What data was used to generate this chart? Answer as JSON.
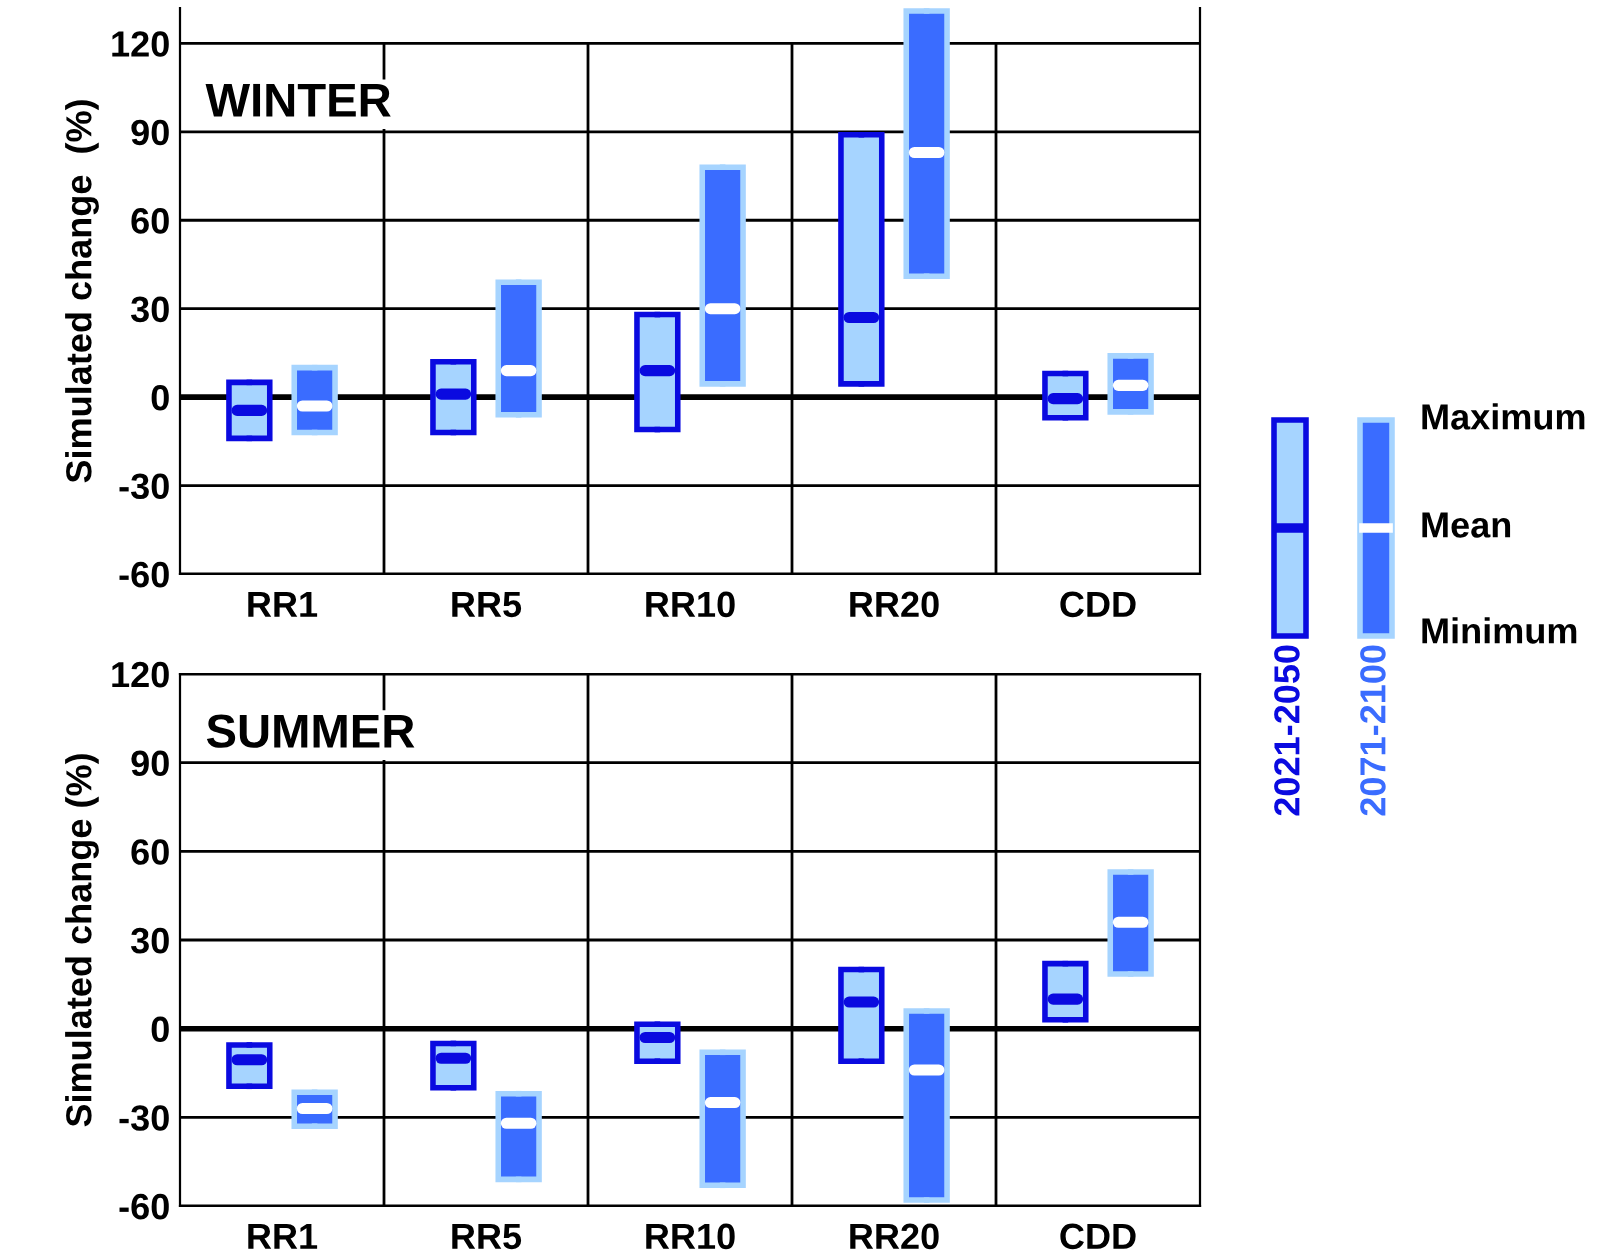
{
  "chart_data": [
    {
      "type": "box",
      "title": "WINTER",
      "ylabel": "Simulated change  (%)",
      "categories": [
        "RR1",
        "RR5",
        "RR10",
        "RR20",
        "CDD"
      ],
      "series": [
        {
          "name": "2021-2050",
          "color": "#a6d4ff",
          "boxes": [
            {
              "low": -14,
              "q1": -14,
              "median": -4.5,
              "q3": 5,
              "high": 5
            },
            {
              "low": -12,
              "q1": -12,
              "median": 1,
              "q3": 12,
              "high": 12
            },
            {
              "low": -11,
              "q1": -11,
              "median": 9,
              "q3": 28,
              "high": 28
            },
            {
              "low": 4.5,
              "q1": 4.5,
              "median": 27,
              "q3": 89,
              "high": 89
            },
            {
              "low": -7,
              "q1": -7,
              "median": -0.5,
              "q3": 8,
              "high": 8
            }
          ]
        },
        {
          "name": "2071-2100",
          "color": "#3a6cff",
          "boxes": [
            {
              "low": -12,
              "q1": -12,
              "median": -3,
              "q3": 10,
              "high": 10
            },
            {
              "low": -6,
              "q1": -6,
              "median": 9,
              "q3": 39,
              "high": 39
            },
            {
              "low": 4.5,
              "q1": 4.5,
              "median": 30,
              "q3": 78,
              "high": 78
            },
            {
              "low": 41,
              "q1": 41,
              "median": 83,
              "q3": 131,
              "high": 131
            },
            {
              "low": -5,
              "q1": -5,
              "median": 4,
              "q3": 14,
              "high": 14
            }
          ]
        }
      ],
      "ylim": [
        -60,
        132
      ],
      "yticks": [
        -60,
        -30,
        0,
        30,
        60,
        90,
        120
      ],
      "grid": true,
      "legend": "right",
      "ref_lines": [
        {
          "axis": "y",
          "value": 0
        }
      ],
      "annotations": [
        "Maximum",
        "Mean",
        "Minimum"
      ]
    },
    {
      "type": "box",
      "title": "SUMMER",
      "ylabel": "Simulated change (%)",
      "categories": [
        "RR1",
        "RR5",
        "RR10",
        "RR20",
        "CDD"
      ],
      "series": [
        {
          "color": "#a6d4ff",
          "boxes": [
            {
              "low": -19.5,
              "q1": -19.5,
              "median": -10.5,
              "q3": -5.5,
              "high": -5.5
            },
            {
              "low": -20,
              "q1": -20,
              "median": -10,
              "q3": -5,
              "high": -5
            },
            {
              "low": -11,
              "q1": -11,
              "median": -3,
              "q3": 1.5,
              "high": 1.5
            },
            {
              "low": -11,
              "q1": -11,
              "median": 9,
              "q3": 20,
              "high": 20
            },
            {
              "low": 3,
              "q1": 3,
              "median": 10,
              "q3": 22,
              "high": 22
            }
          ]
        },
        {
          "color": "#3a6cff",
          "boxes": [
            {
              "low": -33,
              "q1": -33,
              "median": -27,
              "q3": -21.5,
              "high": -21.5
            },
            {
              "low": -51,
              "q1": -51,
              "median": -32,
              "q3": -22,
              "high": -22
            },
            {
              "low": -53,
              "q1": -53,
              "median": -25,
              "q3": -8,
              "high": -8
            },
            {
              "low": -58,
              "q1": -58,
              "median": -14,
              "q3": 6,
              "high": 6
            },
            {
              "low": 18.5,
              "q1": 18.5,
              "median": 36,
              "q3": 53,
              "high": 53
            }
          ]
        }
      ],
      "ylim": [
        -60,
        120
      ],
      "yticks": [
        -60,
        -30,
        0,
        30,
        60,
        90,
        120
      ],
      "grid": true,
      "ref_lines": [
        {
          "axis": "y",
          "value": 0
        }
      ]
    }
  ]
}
